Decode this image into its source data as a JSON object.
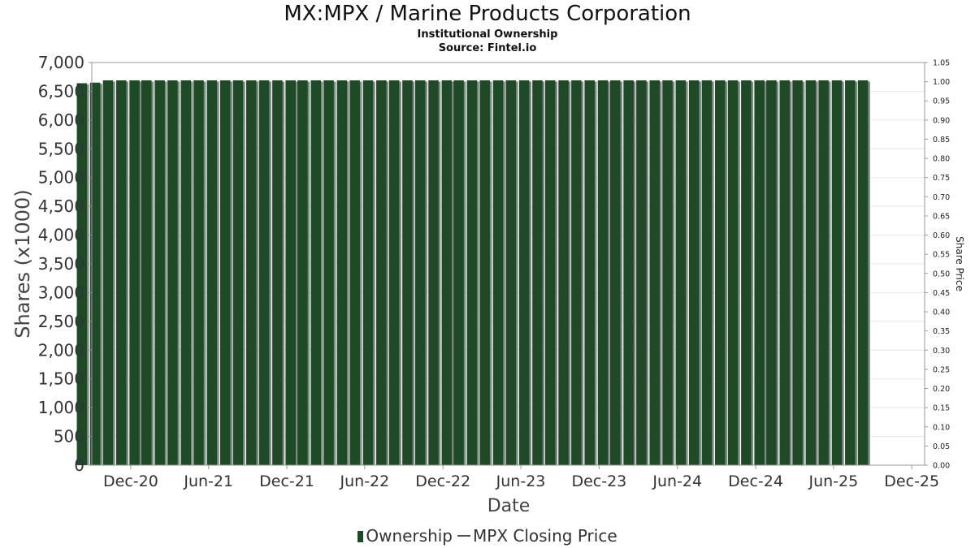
{
  "title": "MX:MPX / Marine Products Corporation",
  "subtitle": "Institutional Ownership",
  "source": "Source: Fintel.io",
  "colors": {
    "bar": "#1e4a27",
    "bar_shadow": "#7f8a80",
    "grid": "#e6e6e6",
    "axis": "#999999"
  },
  "chart_data": {
    "type": "bar",
    "xlabel": "Date",
    "ylabel": "Shares (x1000)",
    "y2label": "Share Price",
    "ylim": [
      0,
      7000
    ],
    "y2lim": [
      0,
      1.05
    ],
    "grid": true,
    "legend_position": "bottom",
    "y_ticks": [
      "0",
      "500",
      "1,000",
      "1,500",
      "2,000",
      "2,500",
      "3,000",
      "3,500",
      "4,000",
      "4,500",
      "5,000",
      "5,500",
      "6,000",
      "6,500",
      "7,000"
    ],
    "y2_ticks": [
      "0.00",
      "0.05",
      "0.10",
      "0.15",
      "0.20",
      "0.25",
      "0.30",
      "0.35",
      "0.40",
      "0.45",
      "0.50",
      "0.55",
      "0.60",
      "0.65",
      "0.70",
      "0.75",
      "0.80",
      "0.85",
      "0.90",
      "0.95",
      "1.00",
      "1.05"
    ],
    "x_ticks": [
      "Dec-20",
      "Jun-21",
      "Dec-21",
      "Jun-22",
      "Dec-22",
      "Jun-23",
      "Dec-23",
      "Jun-24",
      "Dec-24",
      "Jun-25",
      "Dec-25"
    ],
    "x_start": "2020-09-01",
    "x_end": "2025-12-31",
    "bar_interval_months": 1,
    "series": [
      {
        "name": "Ownership",
        "values": [
          6640,
          6650,
          6690,
          6690,
          6690,
          6690,
          6690,
          6690,
          6690,
          6690,
          6690,
          6690,
          6690,
          6690,
          6690,
          6690,
          6690,
          6690,
          6690,
          6690,
          6690,
          6690,
          6690,
          6690,
          6690,
          6690,
          6690,
          6690,
          6690,
          6690,
          6690,
          6690,
          6690,
          6690,
          6690,
          6690,
          6690,
          6690,
          6690,
          6690,
          6690,
          6690,
          6690,
          6690,
          6690,
          6690,
          6690,
          6690,
          6690,
          6690,
          6690,
          6690,
          6690,
          6690,
          6690,
          6690,
          6690,
          6690,
          6690,
          6690,
          6690
        ]
      },
      {
        "name": "MPX Closing Price",
        "values": []
      }
    ]
  }
}
